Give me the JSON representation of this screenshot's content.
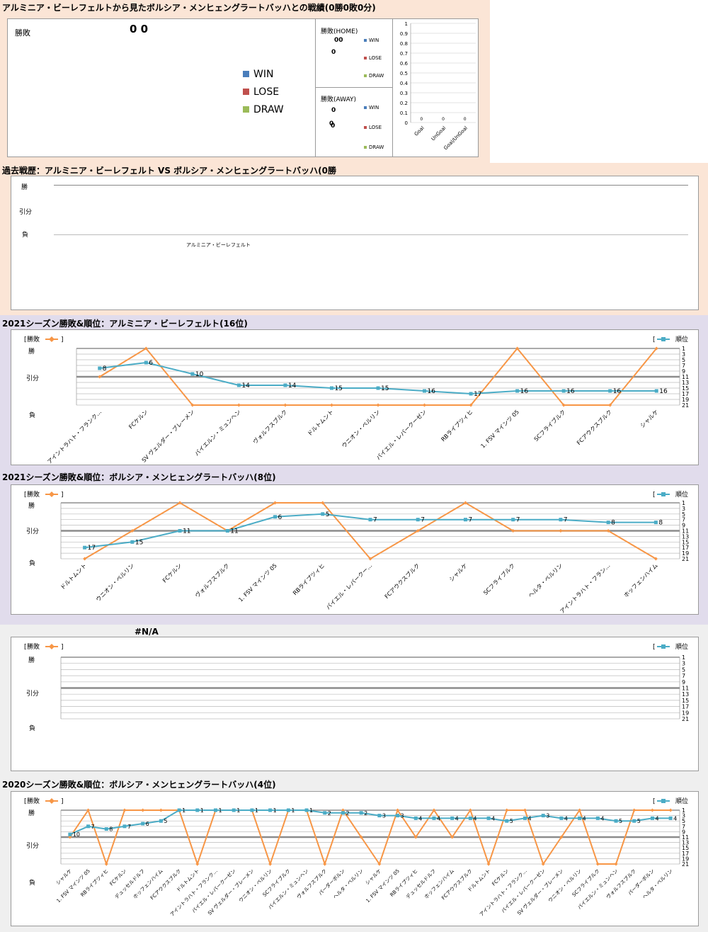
{
  "summary": {
    "title": "アルミニア・ビーレフェルトから見たボルシア・メンヒェングラートバッハとの戦績(0勝0敗0分)",
    "record_label": "勝敗",
    "record_value": "0 0",
    "legend": [
      {
        "label": "WIN",
        "color": "#4a7ebb"
      },
      {
        "label": "LOSE",
        "color": "#c0504d"
      },
      {
        "label": "DRAW",
        "color": "#9bbb59"
      }
    ],
    "home_label": "勝敗(HOME)",
    "away_label": "勝敗(AWAY)",
    "home_values": [
      "00",
      "0"
    ],
    "away_values": [
      "0",
      "0",
      "0"
    ]
  },
  "goal_chart": {
    "type": "bar",
    "categories": [
      "Goal",
      "UnGoal",
      "Goal/UnGoal"
    ],
    "values": [
      0,
      0,
      0
    ],
    "data_labels": [
      "0",
      "0",
      "0"
    ],
    "y_ticks": [
      "1",
      "0.9",
      "0.8",
      "0.7",
      "0.6",
      "0.5",
      "0.4",
      "0.3",
      "0.2",
      "0.1",
      "0"
    ],
    "ylim": [
      0,
      1
    ]
  },
  "history": {
    "title": "過去戦歴：アルミニア・ビーレフェルト VS ボルシア・メンヒェングラートバッハ(0勝",
    "y_labels": [
      "勝",
      "引分",
      "負"
    ],
    "x_label": "アルミニア・ビーレフェルト"
  },
  "common": {
    "wl_legend": "勝敗",
    "rank_legend": "順位",
    "y_labels": [
      "勝",
      "引分",
      "負"
    ],
    "rank_ticks": [
      "1",
      "3",
      "5",
      "7",
      "9",
      "11",
      "13",
      "15",
      "17",
      "19",
      "21"
    ]
  },
  "chart_data": [
    {
      "type": "line",
      "title": "2021シーズン勝敗&順位：アルミニア・ビーレフェルト(16位)",
      "categories": [
        "アイントラハト・フランク…",
        "FCケルン",
        "SV ヴェルダー・ブレーメン",
        "バイエルン・ミュンヘン",
        "ヴォルフスブルク",
        "ドルトムント",
        "ウニオン・ベルリン",
        "バイエル・レバークーゼン",
        "RBライプツィヒ",
        "1. FSV マインツ 05",
        "SCフライブルク",
        "FCアウクスブルク",
        "シャルケ"
      ],
      "series": [
        {
          "name": "勝敗",
          "values": [
            0.5,
            1,
            0,
            0,
            0,
            0,
            0,
            0,
            0,
            1,
            0,
            0,
            1
          ]
        },
        {
          "name": "順位",
          "values": [
            8,
            6,
            10,
            14,
            14,
            15,
            15,
            16,
            17,
            16,
            16,
            16,
            16
          ]
        }
      ]
    },
    {
      "type": "line",
      "title": "2021シーズン勝敗&順位：ボルシア・メンヒェングラートバッハ(8位)",
      "categories": [
        "ドルトムント",
        "ウニオン・ベルリン",
        "FCケルン",
        "ヴォルフスブルク",
        "1. FSV マインツ 05",
        "RBライプツィヒ",
        "バイエル・レバークー…",
        "FCアウクスブルク",
        "シャルケ",
        "SCフライブルク",
        "ヘルタ・ベルリン",
        "アイントラハト・フラン…",
        "ホッフェンハイム"
      ],
      "series": [
        {
          "name": "勝敗",
          "values": [
            0,
            0.5,
            1,
            0.5,
            1,
            1,
            0,
            0.5,
            1,
            0.5,
            0.5,
            0.5,
            0
          ]
        },
        {
          "name": "順位",
          "values": [
            17,
            15,
            11,
            11,
            6,
            5,
            7,
            7,
            7,
            7,
            7,
            8,
            8
          ]
        }
      ]
    },
    {
      "type": "line",
      "title": "#N/A",
      "categories": [],
      "series": [
        {
          "name": "勝敗",
          "values": []
        },
        {
          "name": "順位",
          "values": []
        }
      ]
    },
    {
      "type": "line",
      "title": "2020シーズン勝敗&順位：ボルシア・メンヒェングラートバッハ(4位)",
      "categories": [
        "シャルケ",
        "1. FSV マインツ 05",
        "RBライプツィヒ",
        "FCケルン",
        "デュッセルドルフ",
        "ホッフェンハイム",
        "FCアウクスブルク",
        "ドルトムント",
        "アイントラハト・フランク…",
        "バイエル・レバークーゼン",
        "SV ヴェルダー・ブレーメン",
        "ウニオン・ベルリン",
        "SCフライブルク",
        "バイエルン・ミュンヘン",
        "ヴォルフスブルク",
        "パーダーボルン",
        "ヘルタ・ベルリン",
        "シャルケ",
        "1. FSV マインツ 05",
        "RBライプツィヒ",
        "デュッセルドルフ",
        "ホッフェンハイム",
        "FCアウクスブルク",
        "ドルトムント",
        "FCケルン",
        "アイントラハト・フランク…",
        "バイエル・レバークーゼン",
        "SV ヴェルダー・ブレーメン",
        "ウニオン・ベルリン",
        "SCフライブルク",
        "バイエルン・ミュンヘン",
        "ヴォルフスブルク",
        "パーダーボルン",
        "ヘルタ・ベルリン"
      ],
      "series": [
        {
          "name": "勝敗",
          "values": [
            0.5,
            1,
            0,
            1,
            1,
            1,
            1,
            0,
            1,
            1,
            1,
            0,
            1,
            1,
            0,
            1,
            0.5,
            0,
            1,
            0.5,
            1,
            0.5,
            1,
            0,
            1,
            1,
            0,
            0.5,
            1,
            0,
            0,
            1,
            1,
            1
          ]
        },
        {
          "name": "順位",
          "values": [
            10,
            7,
            8,
            7,
            6,
            5,
            1,
            1,
            1,
            1,
            1,
            1,
            1,
            1,
            2,
            2,
            2,
            3,
            3,
            4,
            4,
            4,
            4,
            4,
            5,
            4,
            3,
            4,
            4,
            4,
            5,
            5,
            4,
            4
          ]
        }
      ]
    }
  ]
}
